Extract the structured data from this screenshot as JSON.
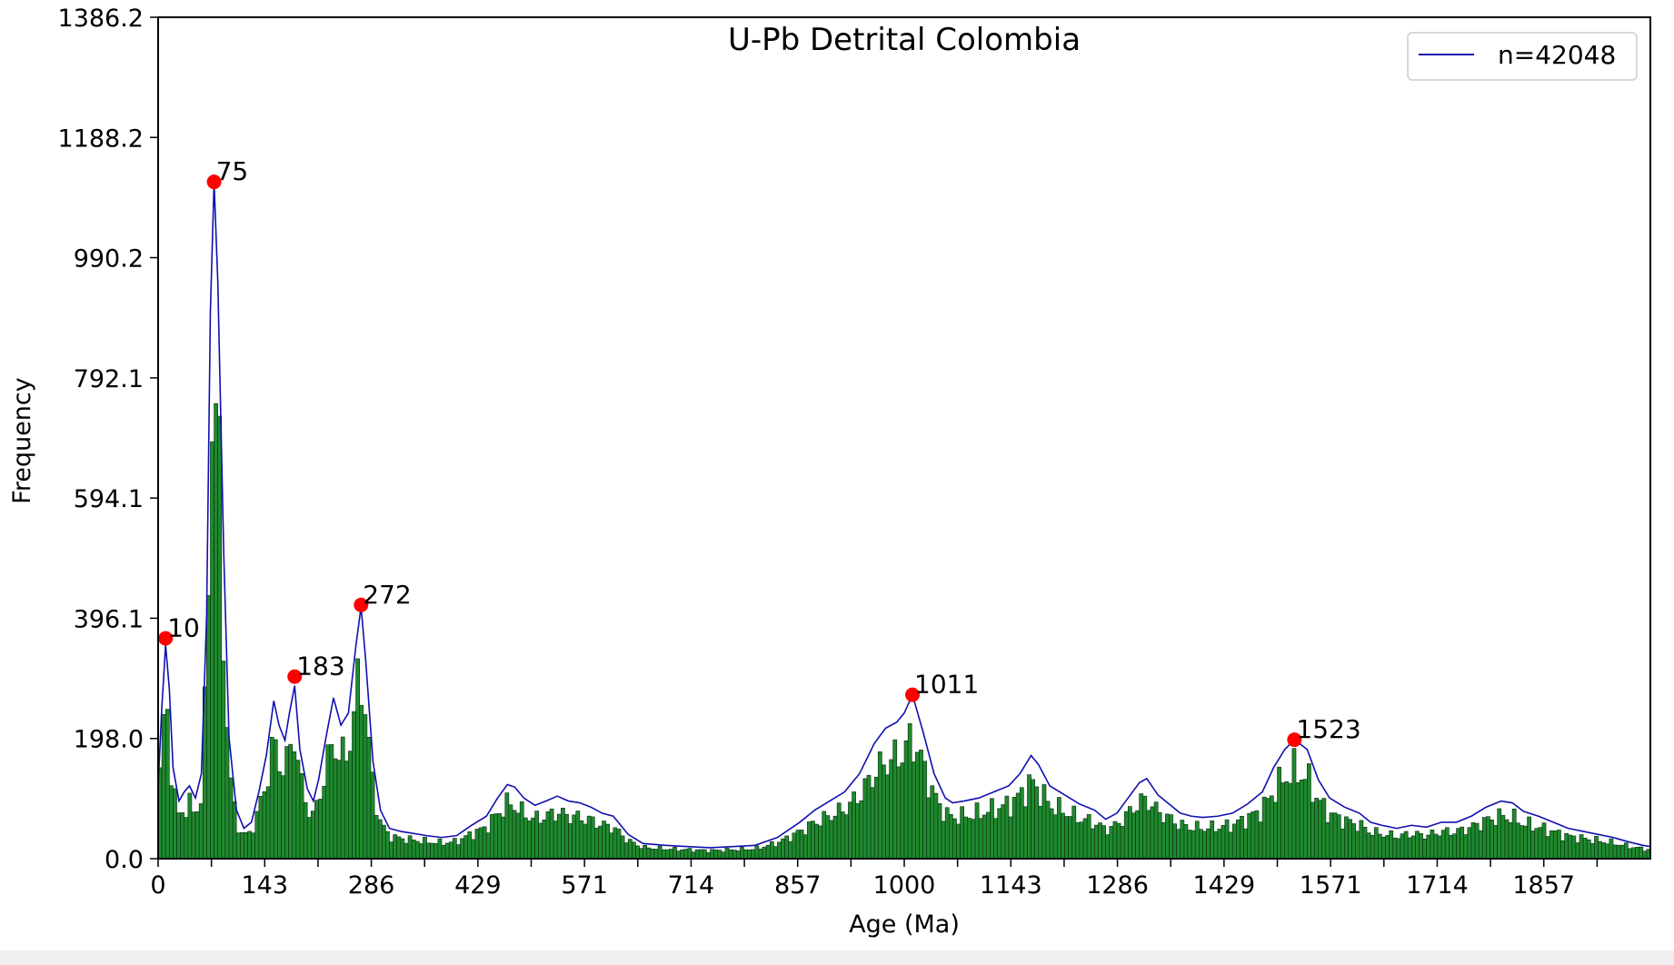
{
  "chart_data": {
    "type": "bar",
    "title": "U-Pb Detrital Colombia",
    "xlabel": "Age (Ma)",
    "ylabel": "Frequency",
    "xlim": [
      0,
      2000
    ],
    "ylim": [
      0,
      1386.2
    ],
    "x_ticks": [
      "0",
      "143",
      "286",
      "429",
      "571",
      "714",
      "857",
      "1000",
      "1143",
      "1286",
      "1429",
      "1571",
      "1714",
      "1857"
    ],
    "y_ticks": [
      "0.0",
      "198.0",
      "396.1",
      "594.1",
      "792.1",
      "990.2",
      "1188.2",
      "1386.2"
    ],
    "bar_color": "#1e8a2e",
    "bar_edge_color": "#0a2a0f",
    "curve_color": "#1010b0",
    "peak_color": "#ff0000",
    "legend": {
      "label": "n=42048",
      "position": "top-right"
    },
    "grid": false,
    "density_curve": [
      [
        0,
        120
      ],
      [
        5,
        250
      ],
      [
        10,
        352
      ],
      [
        15,
        280
      ],
      [
        20,
        150
      ],
      [
        28,
        95
      ],
      [
        35,
        110
      ],
      [
        42,
        120
      ],
      [
        50,
        100
      ],
      [
        58,
        140
      ],
      [
        65,
        400
      ],
      [
        70,
        900
      ],
      [
        75,
        1115
      ],
      [
        80,
        950
      ],
      [
        88,
        500
      ],
      [
        95,
        200
      ],
      [
        105,
        80
      ],
      [
        115,
        50
      ],
      [
        125,
        60
      ],
      [
        135,
        110
      ],
      [
        145,
        170
      ],
      [
        155,
        260
      ],
      [
        162,
        220
      ],
      [
        170,
        195
      ],
      [
        176,
        240
      ],
      [
        183,
        285
      ],
      [
        190,
        180
      ],
      [
        200,
        115
      ],
      [
        208,
        95
      ],
      [
        215,
        130
      ],
      [
        225,
        200
      ],
      [
        235,
        265
      ],
      [
        245,
        220
      ],
      [
        255,
        240
      ],
      [
        265,
        350
      ],
      [
        272,
        415
      ],
      [
        278,
        330
      ],
      [
        288,
        160
      ],
      [
        298,
        80
      ],
      [
        310,
        50
      ],
      [
        325,
        45
      ],
      [
        340,
        42
      ],
      [
        360,
        38
      ],
      [
        380,
        35
      ],
      [
        400,
        38
      ],
      [
        420,
        55
      ],
      [
        440,
        70
      ],
      [
        455,
        100
      ],
      [
        468,
        122
      ],
      [
        478,
        118
      ],
      [
        490,
        100
      ],
      [
        505,
        88
      ],
      [
        520,
        95
      ],
      [
        535,
        103
      ],
      [
        550,
        95
      ],
      [
        565,
        92
      ],
      [
        580,
        85
      ],
      [
        595,
        75
      ],
      [
        610,
        70
      ],
      [
        630,
        40
      ],
      [
        650,
        25
      ],
      [
        680,
        22
      ],
      [
        710,
        20
      ],
      [
        740,
        18
      ],
      [
        770,
        20
      ],
      [
        800,
        22
      ],
      [
        830,
        35
      ],
      [
        860,
        60
      ],
      [
        880,
        80
      ],
      [
        900,
        95
      ],
      [
        920,
        110
      ],
      [
        940,
        140
      ],
      [
        960,
        190
      ],
      [
        975,
        215
      ],
      [
        990,
        225
      ],
      [
        1000,
        240
      ],
      [
        1011,
        270
      ],
      [
        1025,
        210
      ],
      [
        1040,
        140
      ],
      [
        1055,
        100
      ],
      [
        1065,
        92
      ],
      [
        1080,
        95
      ],
      [
        1100,
        100
      ],
      [
        1120,
        110
      ],
      [
        1140,
        120
      ],
      [
        1155,
        140
      ],
      [
        1170,
        170
      ],
      [
        1180,
        155
      ],
      [
        1195,
        120
      ],
      [
        1215,
        105
      ],
      [
        1235,
        90
      ],
      [
        1255,
        80
      ],
      [
        1270,
        65
      ],
      [
        1285,
        75
      ],
      [
        1300,
        100
      ],
      [
        1315,
        125
      ],
      [
        1325,
        132
      ],
      [
        1340,
        105
      ],
      [
        1355,
        90
      ],
      [
        1370,
        75
      ],
      [
        1385,
        70
      ],
      [
        1400,
        68
      ],
      [
        1420,
        70
      ],
      [
        1440,
        75
      ],
      [
        1460,
        90
      ],
      [
        1480,
        110
      ],
      [
        1495,
        150
      ],
      [
        1510,
        180
      ],
      [
        1523,
        196
      ],
      [
        1540,
        180
      ],
      [
        1555,
        130
      ],
      [
        1570,
        100
      ],
      [
        1590,
        85
      ],
      [
        1610,
        75
      ],
      [
        1625,
        60
      ],
      [
        1640,
        55
      ],
      [
        1660,
        50
      ],
      [
        1680,
        55
      ],
      [
        1700,
        52
      ],
      [
        1720,
        60
      ],
      [
        1740,
        60
      ],
      [
        1760,
        70
      ],
      [
        1780,
        85
      ],
      [
        1800,
        95
      ],
      [
        1815,
        92
      ],
      [
        1830,
        78
      ],
      [
        1850,
        70
      ],
      [
        1870,
        60
      ],
      [
        1890,
        50
      ],
      [
        1910,
        45
      ],
      [
        1930,
        40
      ],
      [
        1950,
        35
      ],
      [
        1970,
        28
      ],
      [
        1990,
        22
      ],
      [
        2000,
        20
      ]
    ],
    "peaks": [
      {
        "x": 10,
        "y": 363,
        "label": "10"
      },
      {
        "x": 75,
        "y": 1115,
        "label": "75"
      },
      {
        "x": 183,
        "y": 300,
        "label": "183"
      },
      {
        "x": 272,
        "y": 418,
        "label": "272"
      },
      {
        "x": 1011,
        "y": 270,
        "label": "1011"
      },
      {
        "x": 1523,
        "y": 196,
        "label": "1523"
      }
    ]
  }
}
